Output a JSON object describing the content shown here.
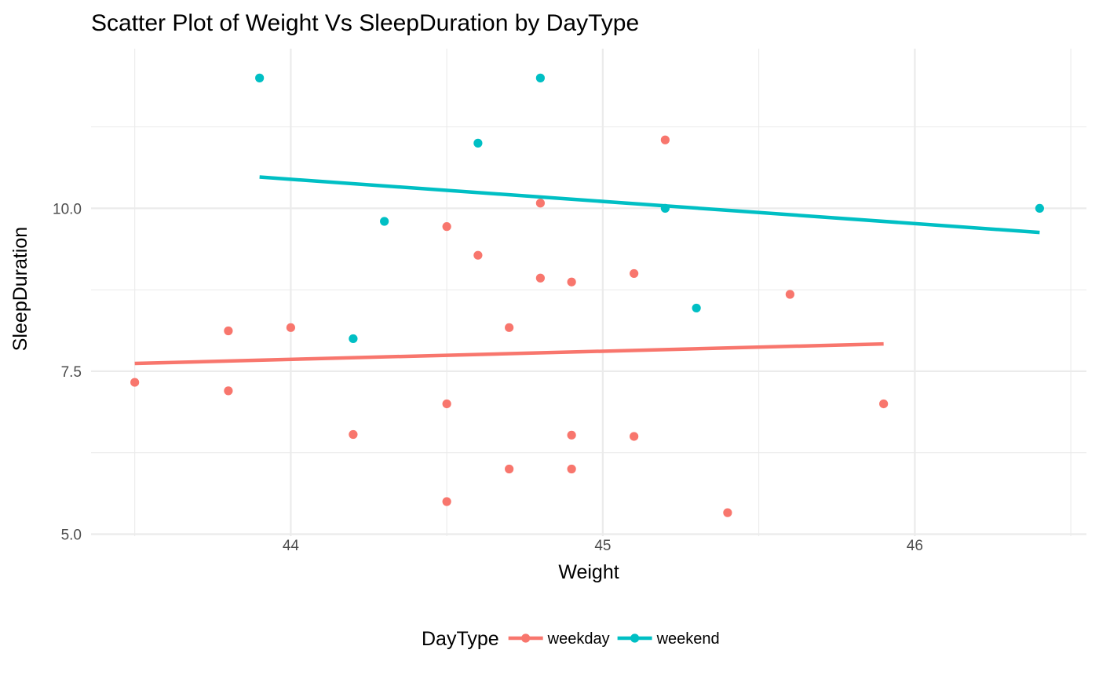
{
  "chart_data": {
    "type": "scatter",
    "title": "Scatter Plot of Weight Vs SleepDuration by DayType",
    "xlabel": "Weight",
    "ylabel": "SleepDuration",
    "xlim": [
      43.36,
      46.55
    ],
    "ylim": [
      4.97,
      12.45
    ],
    "x_ticks": [
      44,
      45,
      46
    ],
    "x_tick_labels": [
      "44",
      "45",
      "46"
    ],
    "x_minor_ticks": [
      43.5,
      44.5,
      45.5,
      46.5
    ],
    "y_ticks": [
      5.0,
      7.5,
      10.0
    ],
    "y_tick_labels": [
      "5.0",
      "7.5",
      "10.0"
    ],
    "y_minor_ticks": [
      6.25,
      8.75,
      11.25
    ],
    "grid": true,
    "legend": {
      "title": "DayType",
      "position": "bottom"
    },
    "series": [
      {
        "name": "weekday",
        "color": "#F8766D",
        "points": [
          {
            "x": 43.5,
            "y": 7.33
          },
          {
            "x": 43.8,
            "y": 8.12
          },
          {
            "x": 43.8,
            "y": 7.2
          },
          {
            "x": 44.0,
            "y": 8.17
          },
          {
            "x": 44.2,
            "y": 6.53
          },
          {
            "x": 44.5,
            "y": 9.72
          },
          {
            "x": 44.5,
            "y": 7.0
          },
          {
            "x": 44.5,
            "y": 5.5
          },
          {
            "x": 44.6,
            "y": 9.28
          },
          {
            "x": 44.7,
            "y": 8.17
          },
          {
            "x": 44.7,
            "y": 6.0
          },
          {
            "x": 44.8,
            "y": 10.08
          },
          {
            "x": 44.8,
            "y": 8.93
          },
          {
            "x": 44.9,
            "y": 8.87
          },
          {
            "x": 44.9,
            "y": 6.52
          },
          {
            "x": 44.9,
            "y": 6.0
          },
          {
            "x": 45.1,
            "y": 9.0
          },
          {
            "x": 45.1,
            "y": 6.5
          },
          {
            "x": 45.2,
            "y": 11.05
          },
          {
            "x": 45.4,
            "y": 5.33
          },
          {
            "x": 45.6,
            "y": 8.68
          },
          {
            "x": 45.9,
            "y": 7.0
          }
        ],
        "trend": [
          {
            "x": 43.5,
            "y": 7.62
          },
          {
            "x": 45.9,
            "y": 7.92
          }
        ]
      },
      {
        "name": "weekend",
        "color": "#00BFC4",
        "points": [
          {
            "x": 43.9,
            "y": 12.0
          },
          {
            "x": 44.3,
            "y": 9.8
          },
          {
            "x": 44.2,
            "y": 8.0
          },
          {
            "x": 44.6,
            "y": 11.0
          },
          {
            "x": 44.8,
            "y": 12.0
          },
          {
            "x": 45.2,
            "y": 10.0
          },
          {
            "x": 45.3,
            "y": 8.47
          },
          {
            "x": 46.4,
            "y": 10.0
          }
        ],
        "trend": [
          {
            "x": 43.9,
            "y": 10.48
          },
          {
            "x": 46.4,
            "y": 9.63
          }
        ]
      }
    ]
  }
}
